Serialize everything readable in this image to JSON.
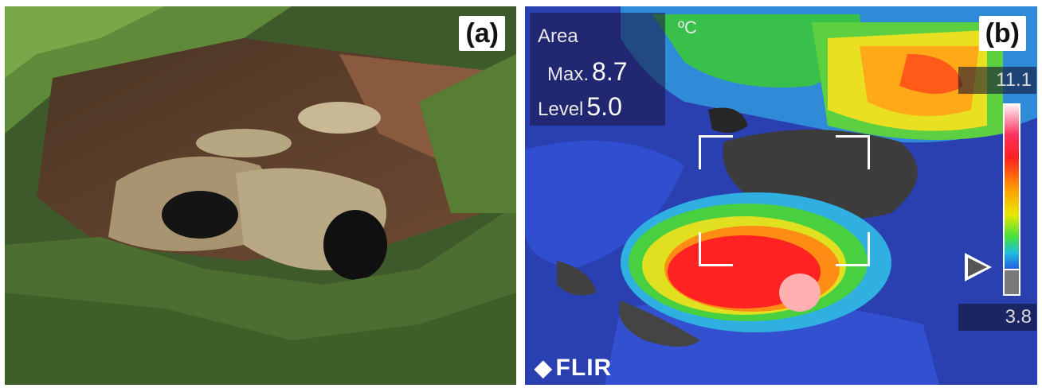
{
  "panel_a": {
    "tag": "(a)"
  },
  "panel_b": {
    "tag": "(b)",
    "unit": "ºC",
    "area_label": "Area",
    "max_label": "Max.",
    "max_value": "8.7",
    "level_label": "Level",
    "level_value": "5.0",
    "scale_max": "11.1",
    "scale_min": "3.8",
    "brand": "FLIR",
    "brand_glyph": "◆"
  }
}
